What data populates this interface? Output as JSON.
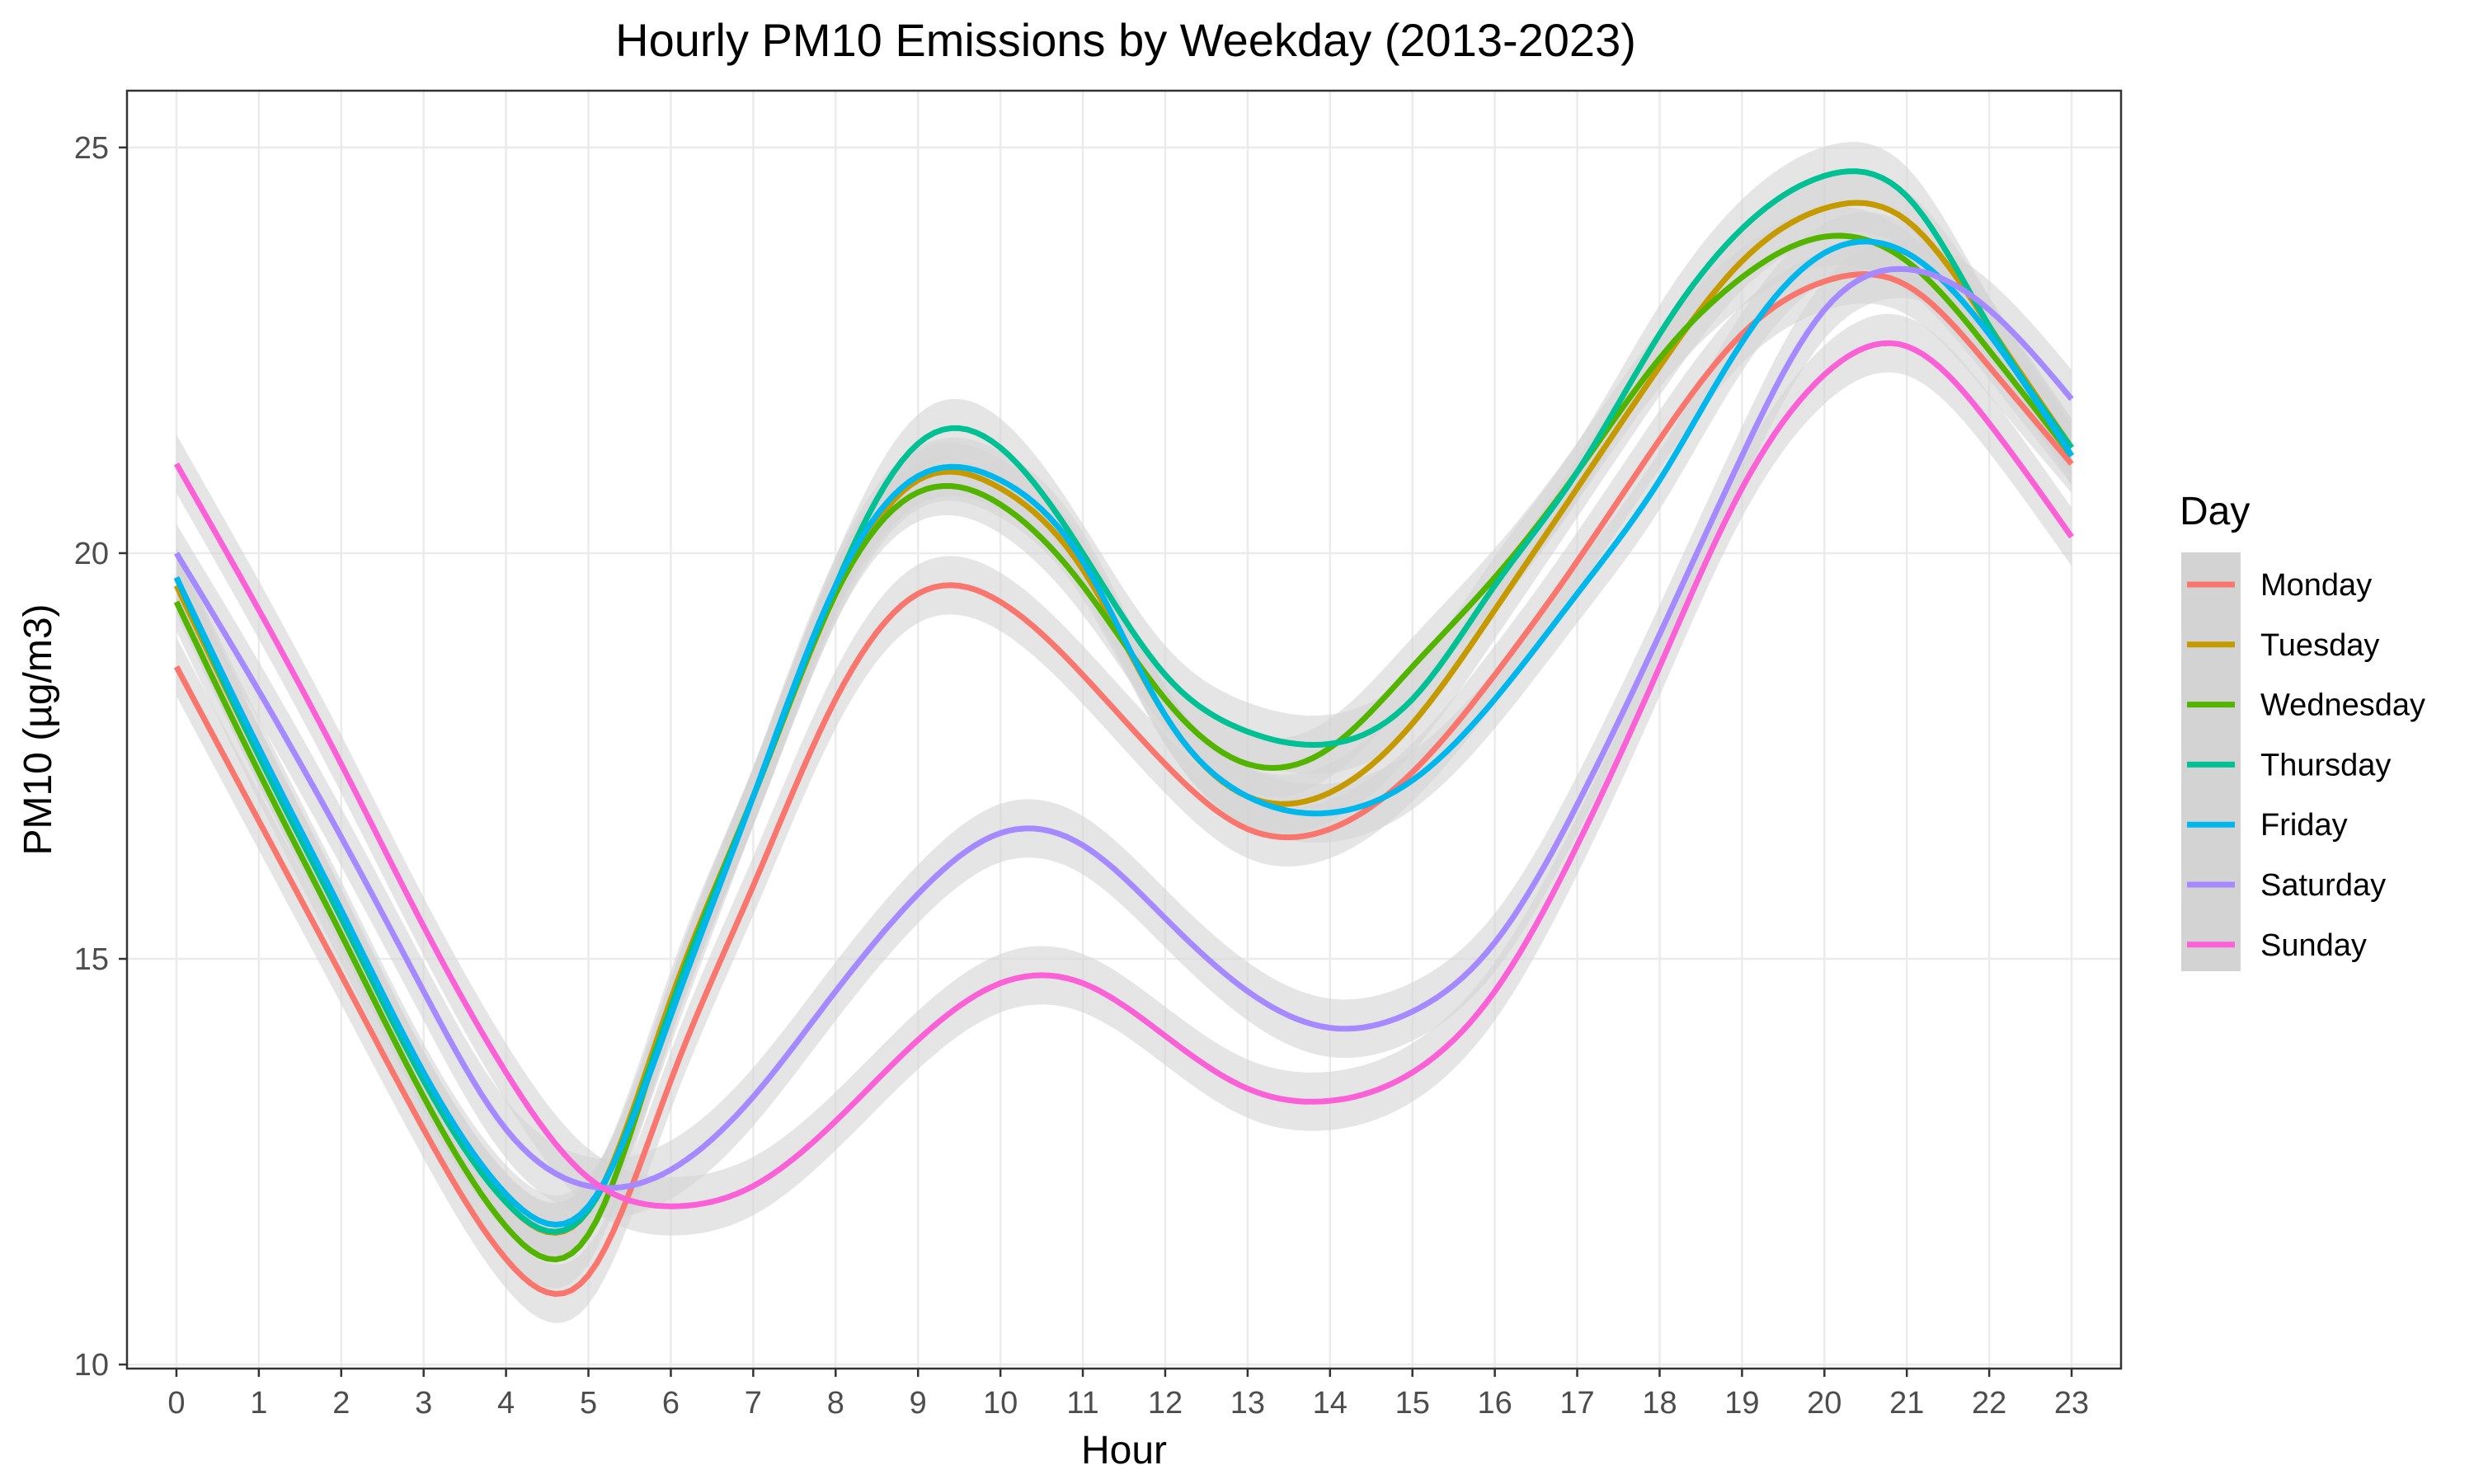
{
  "chart_data": {
    "type": "line",
    "title": "Hourly PM10 Emissions by Weekday (2013-2023)",
    "xlabel": "Hour",
    "ylabel": "PM10 (µg/m3)",
    "x": [
      0,
      1,
      2,
      3,
      4,
      5,
      6,
      7,
      8,
      9,
      10,
      11,
      12,
      13,
      14,
      15,
      16,
      17,
      18,
      19,
      20,
      21,
      22,
      23
    ],
    "x_ticks": [
      "0",
      "1",
      "2",
      "3",
      "4",
      "5",
      "6",
      "7",
      "8",
      "9",
      "10",
      "11",
      "12",
      "13",
      "14",
      "15",
      "16",
      "17",
      "18",
      "19",
      "20",
      "21",
      "22",
      "23"
    ],
    "xlim": [
      -0.6,
      23.6
    ],
    "ylim": [
      9.95,
      25.7
    ],
    "y_ticks": [
      10,
      15,
      20,
      25
    ],
    "grid": true,
    "smoothed": true,
    "confidence_band": true,
    "band_color": "#d3d3d3",
    "legend": {
      "title": "Day",
      "position": "right"
    },
    "series": [
      {
        "name": "Monday",
        "color": "#F8766D",
        "values": [
          18.6,
          16.7,
          14.8,
          12.9,
          11.3,
          11.1,
          13.5,
          15.9,
          18.2,
          19.5,
          19.4,
          18.5,
          17.4,
          16.6,
          16.6,
          17.3,
          18.5,
          19.9,
          21.4,
          22.7,
          23.35,
          23.3,
          22.3,
          21.1
        ]
      },
      {
        "name": "Tuesday",
        "color": "#C49A00",
        "values": [
          19.6,
          17.5,
          15.5,
          13.5,
          12.0,
          11.9,
          14.5,
          17.0,
          19.5,
          20.9,
          20.8,
          19.8,
          18.0,
          17.0,
          17.05,
          17.9,
          19.3,
          20.8,
          22.3,
          23.6,
          24.25,
          24.1,
          22.8,
          21.3
        ]
      },
      {
        "name": "Wednesday",
        "color": "#53B400",
        "values": [
          19.4,
          17.3,
          15.3,
          13.3,
          11.7,
          11.6,
          14.4,
          17.0,
          19.5,
          20.75,
          20.6,
          19.6,
          18.2,
          17.4,
          17.6,
          18.6,
          19.7,
          21.0,
          22.4,
          23.4,
          23.9,
          23.6,
          22.5,
          21.2
        ]
      },
      {
        "name": "Thursday",
        "color": "#00C094",
        "values": [
          19.7,
          17.5,
          15.5,
          13.5,
          12.0,
          11.9,
          14.4,
          17.0,
          19.6,
          21.35,
          21.3,
          20.0,
          18.5,
          17.8,
          17.65,
          18.2,
          19.6,
          21.0,
          22.7,
          24.0,
          24.65,
          24.4,
          22.8,
          21.3
        ]
      },
      {
        "name": "Friday",
        "color": "#00B6EB",
        "values": [
          19.7,
          17.6,
          15.6,
          13.6,
          12.1,
          11.95,
          14.3,
          17.0,
          19.6,
          20.95,
          20.9,
          19.9,
          18.0,
          17.0,
          16.8,
          17.2,
          18.2,
          19.5,
          20.9,
          22.6,
          23.7,
          23.7,
          22.7,
          21.2
        ]
      },
      {
        "name": "Saturday",
        "color": "#A58AFF",
        "values": [
          20.0,
          18.3,
          16.5,
          14.6,
          12.9,
          12.2,
          12.4,
          13.3,
          14.6,
          15.8,
          16.55,
          16.4,
          15.5,
          14.6,
          14.15,
          14.35,
          15.2,
          16.9,
          19.0,
          21.2,
          23.0,
          23.5,
          23.0,
          21.9
        ]
      },
      {
        "name": "Sunday",
        "color": "#FB61D7",
        "values": [
          21.1,
          19.3,
          17.4,
          15.4,
          13.6,
          12.3,
          11.95,
          12.2,
          13.0,
          14.0,
          14.7,
          14.7,
          14.05,
          13.4,
          13.25,
          13.6,
          14.6,
          16.4,
          18.6,
          20.8,
          22.2,
          22.55,
          21.6,
          20.2
        ]
      }
    ]
  }
}
